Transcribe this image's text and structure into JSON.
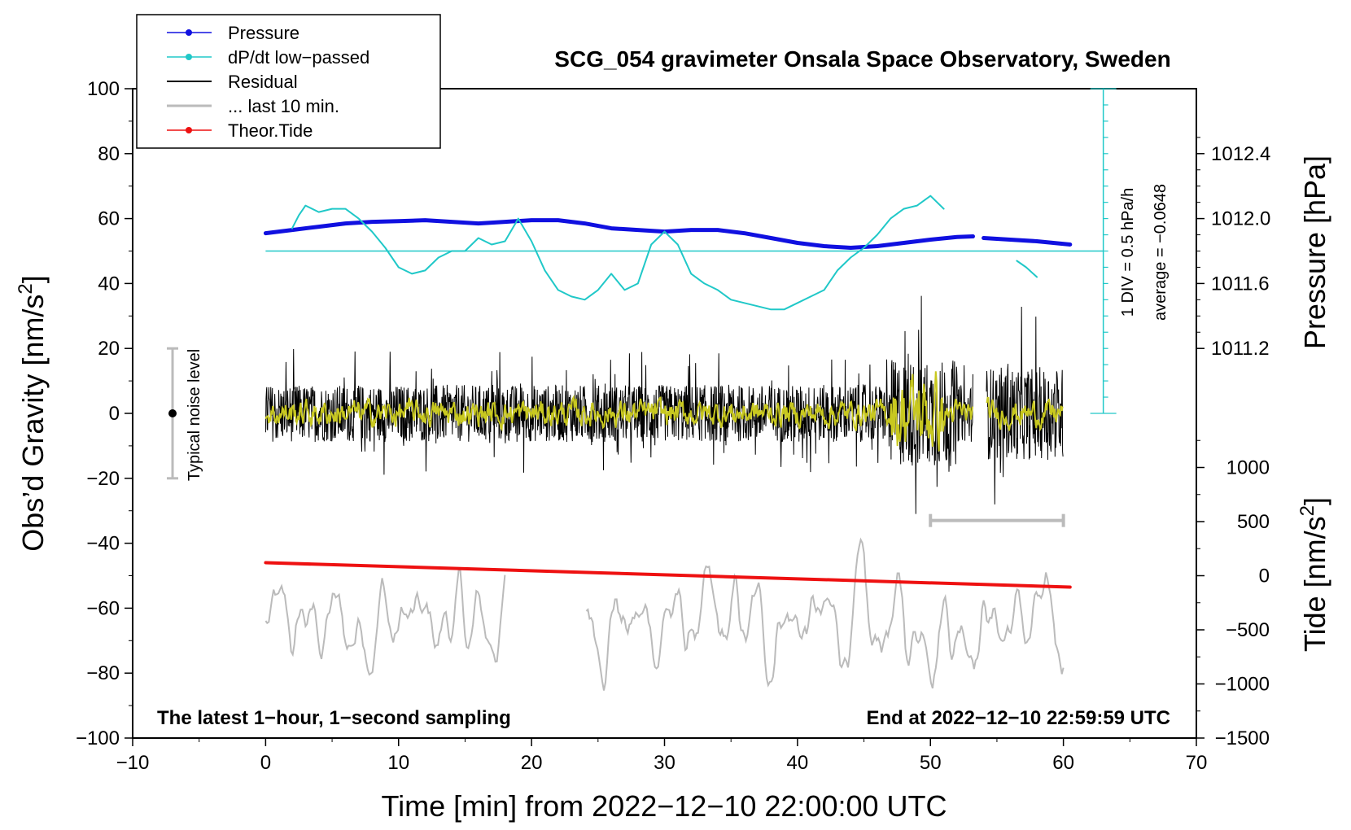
{
  "chart_data": {
    "type": "line",
    "title": "SCG_054 gravimeter Onsala Space Observatory, Sweden",
    "xlabel": "Time [min] from 2022−12−10 22:00:00 UTC",
    "ylabel_left": "Obs’d Gravity [nm/s²]",
    "ylabel_left_base": "Obs’d Gravity [nm/s",
    "ylabel_left_sup": "2",
    "ylabel_left_end": "]",
    "ylabel_right_pressure": "Pressure [hPa]",
    "ylabel_right_tide": "Tide [nm/s²]",
    "ylabel_right_tide_base": "Tide [nm/s",
    "ylabel_right_tide_sup": "2",
    "ylabel_right_tide_end": "]",
    "xlim": [
      -10,
      70
    ],
    "ylim_left": [
      -100,
      100
    ],
    "x_ticks": [
      "−10",
      "0",
      "10",
      "20",
      "30",
      "40",
      "50",
      "60",
      "70"
    ],
    "y_ticks_left": [
      "100",
      "80",
      "60",
      "40",
      "20",
      "0",
      "−20",
      "−40",
      "−60",
      "−80",
      "−100"
    ],
    "pressure_axis": {
      "ticks": [
        "1012.4",
        "1012.0",
        "1011.6",
        "1011.2"
      ],
      "values": [
        1012.4,
        1012.0,
        1011.6,
        1011.2
      ]
    },
    "tide_axis": {
      "ticks": [
        "1000",
        "500",
        "0",
        "−500",
        "−1000",
        "−1500"
      ],
      "values": [
        1000,
        500,
        0,
        -500,
        -1000,
        -1500
      ]
    },
    "legend": [
      {
        "label": "Pressure",
        "color": "#1010e0",
        "marker": true
      },
      {
        "label": "dP/dt low−passed",
        "color": "#20c8c8",
        "marker": true
      },
      {
        "label": "Residual",
        "color": "#000000",
        "marker": false
      },
      {
        "label": "... last 10 min.",
        "color": "#bbbbbb",
        "marker": false
      },
      {
        "label": "Theor.Tide",
        "color": "#ee1111",
        "marker": true
      }
    ],
    "series": [
      {
        "name": "Pressure",
        "color": "#1010e0",
        "x": [
          0,
          2,
          4,
          6,
          8,
          10,
          12,
          14,
          16,
          18,
          20,
          22,
          24,
          26,
          28,
          30,
          32,
          34,
          36,
          38,
          40,
          42,
          44,
          46,
          48,
          50,
          52,
          53.2
        ],
        "y": [
          55.5,
          56.5,
          57.5,
          58.5,
          59,
          59.2,
          59.5,
          59,
          58.5,
          59,
          59.5,
          59.5,
          58.5,
          57,
          56.5,
          56,
          56.5,
          56.5,
          55.5,
          54,
          52.5,
          51.5,
          51,
          51.5,
          52.5,
          53.5,
          54.3,
          54.5
        ]
      },
      {
        "name": "Pressure (after gap)",
        "color": "#1010e0",
        "x": [
          54,
          56,
          58,
          60.5
        ],
        "y": [
          54,
          53.5,
          53,
          52
        ]
      },
      {
        "name": "dP/dt low−passed",
        "color": "#20c8c8",
        "x": [
          2,
          2.5,
          3,
          4,
          5,
          6,
          7,
          8,
          9,
          10,
          11,
          12,
          13,
          14,
          15,
          16,
          17,
          18,
          19,
          20,
          21,
          22,
          23,
          24,
          25,
          26,
          27,
          28,
          29,
          30,
          31,
          32,
          33,
          34,
          35,
          36,
          37,
          38,
          39,
          40,
          41,
          42,
          43,
          44,
          45,
          46,
          47,
          48,
          49,
          50,
          51
        ],
        "y": [
          57,
          61,
          64,
          62,
          63,
          63,
          60,
          56,
          51,
          45,
          43,
          44,
          48,
          50,
          50,
          54,
          52,
          53,
          60,
          53,
          44,
          38,
          36,
          35,
          38,
          43,
          38,
          40,
          52,
          56,
          52,
          43,
          40,
          38,
          35,
          34,
          33,
          32,
          32,
          34,
          36,
          38,
          44,
          48,
          51,
          55,
          60,
          63,
          64,
          67,
          63
        ]
      },
      {
        "name": "dP/dt low−passed (tail)",
        "color": "#20c8c8",
        "x": [
          56.5,
          57.2,
          58
        ],
        "y": [
          47,
          45,
          42
        ]
      },
      {
        "name": "Theor.Tide",
        "color": "#ee1111",
        "x": [
          0,
          60.5
        ],
        "y": [
          -46,
          -53.5
        ]
      }
    ],
    "noisy_series": [
      {
        "name": "Residual",
        "color": "#000000",
        "x_start": 0,
        "x_end": 60,
        "amplitude": 22
      },
      {
        "name": "Residual (smoothed)",
        "color": "#c8c820",
        "x_start": 0,
        "x_end": 60,
        "amplitude": 8
      },
      {
        "name": "... last 10 min.",
        "color": "#bbbbbb",
        "x_start": 0,
        "x_end": 60,
        "gap": [
          18,
          24
        ],
        "center": -65,
        "amplitude": 25
      }
    ],
    "pressure_reference": {
      "y": 50,
      "color": "#20c8c8"
    },
    "dpdt_scale": {
      "x": 63,
      "y_bottom": 0,
      "y_top": 100,
      "divisions": 20,
      "label_div": "1 DIV = 0.5 hPa/h",
      "label_avg": "average = −0.0648"
    },
    "noise_bar": {
      "x": -7,
      "y_low": -20,
      "y_high": 20,
      "y_center": 0,
      "label": "Typical noise level"
    },
    "last10_bar": {
      "x_start": 50,
      "x_end": 60,
      "y": -33
    },
    "note_left": "The latest 1−hour, 1−second sampling",
    "note_right": "End at 2022−12−10 22:59:59 UTC"
  }
}
